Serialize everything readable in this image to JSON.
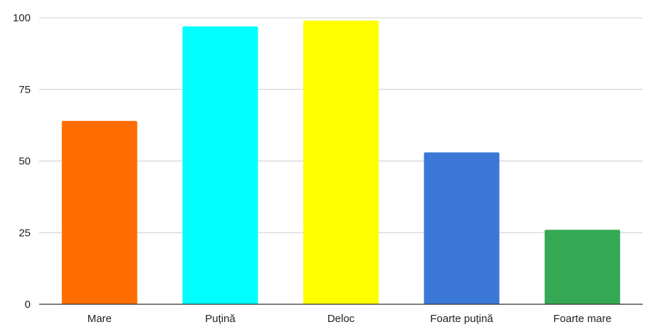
{
  "chart_data": {
    "type": "bar",
    "title": "",
    "xlabel": "",
    "ylabel": "",
    "categories": [
      "Mare",
      "Puțină",
      "Deloc",
      "Foarte puțină",
      "Foarte mare"
    ],
    "values": [
      64,
      97,
      99,
      53,
      26
    ],
    "colors": [
      "#ff6d01",
      "#00ffff",
      "#ffff00",
      "#3c78d8",
      "#34a853"
    ],
    "ylim": [
      0,
      100
    ],
    "yticks": [
      0,
      25,
      50,
      75,
      100
    ],
    "grid": true,
    "legend": "none"
  }
}
